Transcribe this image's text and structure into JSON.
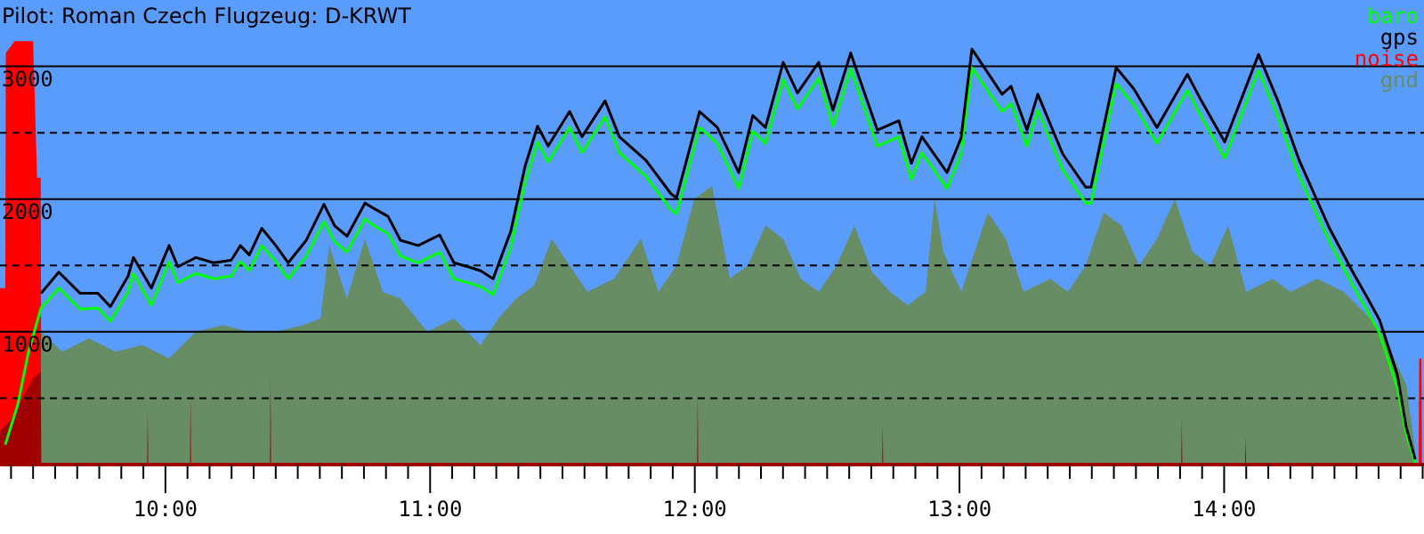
{
  "chart_data": {
    "type": "line",
    "title": "Pilot: Roman Czech Flugzeug: D-KRWT",
    "xlim": [
      9.375,
      14.755
    ],
    "ylim": [
      0,
      3500
    ],
    "yticks": [
      {
        "value": 500,
        "label": null
      },
      {
        "value": 1000,
        "label": "1000"
      },
      {
        "value": 1500,
        "label": null
      },
      {
        "value": 2000,
        "label": "2000"
      },
      {
        "value": 2500,
        "label": null
      },
      {
        "value": 3000,
        "label": "3000"
      }
    ],
    "xticks": [
      {
        "value": 9.4167,
        "label": null
      },
      {
        "value": 9.5,
        "label": null
      },
      {
        "value": 9.5833,
        "label": null
      },
      {
        "value": 9.6667,
        "label": null
      },
      {
        "value": 9.75,
        "label": null
      },
      {
        "value": 9.8333,
        "label": null
      },
      {
        "value": 9.9167,
        "label": null
      },
      {
        "value": 10,
        "label": "10:00"
      },
      {
        "value": 10.0833,
        "label": null
      },
      {
        "value": 10.1667,
        "label": null
      },
      {
        "value": 10.25,
        "label": null
      },
      {
        "value": 10.3333,
        "label": null
      },
      {
        "value": 10.4167,
        "label": null
      },
      {
        "value": 10.5,
        "label": null
      },
      {
        "value": 10.5833,
        "label": null
      },
      {
        "value": 10.6667,
        "label": null
      },
      {
        "value": 10.75,
        "label": null
      },
      {
        "value": 10.8333,
        "label": null
      },
      {
        "value": 10.9167,
        "label": null
      },
      {
        "value": 11,
        "label": "11:00"
      },
      {
        "value": 11.0833,
        "label": null
      },
      {
        "value": 11.1667,
        "label": null
      },
      {
        "value": 11.25,
        "label": null
      },
      {
        "value": 11.3333,
        "label": null
      },
      {
        "value": 11.4167,
        "label": null
      },
      {
        "value": 11.5,
        "label": null
      },
      {
        "value": 11.5833,
        "label": null
      },
      {
        "value": 11.6667,
        "label": null
      },
      {
        "value": 11.75,
        "label": null
      },
      {
        "value": 11.8333,
        "label": null
      },
      {
        "value": 11.9167,
        "label": null
      },
      {
        "value": 12,
        "label": "12:00"
      },
      {
        "value": 12.0833,
        "label": null
      },
      {
        "value": 12.1667,
        "label": null
      },
      {
        "value": 12.25,
        "label": null
      },
      {
        "value": 12.3333,
        "label": null
      },
      {
        "value": 12.4167,
        "label": null
      },
      {
        "value": 12.5,
        "label": null
      },
      {
        "value": 12.5833,
        "label": null
      },
      {
        "value": 12.6667,
        "label": null
      },
      {
        "value": 12.75,
        "label": null
      },
      {
        "value": 12.8333,
        "label": null
      },
      {
        "value": 12.9167,
        "label": null
      },
      {
        "value": 13,
        "label": "13:00"
      },
      {
        "value": 13.0833,
        "label": null
      },
      {
        "value": 13.1667,
        "label": null
      },
      {
        "value": 13.25,
        "label": null
      },
      {
        "value": 13.3333,
        "label": null
      },
      {
        "value": 13.4167,
        "label": null
      },
      {
        "value": 13.5,
        "label": null
      },
      {
        "value": 13.5833,
        "label": null
      },
      {
        "value": 13.6667,
        "label": null
      },
      {
        "value": 13.75,
        "label": null
      },
      {
        "value": 13.8333,
        "label": null
      },
      {
        "value": 13.9167,
        "label": null
      },
      {
        "value": 14,
        "label": "14:00"
      },
      {
        "value": 14.0833,
        "label": null
      },
      {
        "value": 14.1667,
        "label": null
      },
      {
        "value": 14.25,
        "label": null
      },
      {
        "value": 14.3333,
        "label": null
      },
      {
        "value": 14.4167,
        "label": null
      },
      {
        "value": 14.5,
        "label": null
      },
      {
        "value": 14.5833,
        "label": null
      },
      {
        "value": 14.6667,
        "label": null
      },
      {
        "value": 14.75,
        "label": null
      }
    ],
    "grid": true,
    "legend": "top right",
    "series": [
      {
        "name": "baro",
        "color": "#00ff00",
        "x": [
          9.395,
          9.442,
          9.483,
          9.53,
          9.597,
          9.678,
          9.745,
          9.792,
          9.859,
          9.879,
          9.947,
          10.014,
          10.047,
          10.115,
          10.182,
          10.249,
          10.283,
          10.317,
          10.364,
          10.417,
          10.464,
          10.532,
          10.599,
          10.639,
          10.686,
          10.754,
          10.787,
          10.841,
          10.888,
          10.955,
          11.036,
          11.09,
          11.144,
          11.191,
          11.238,
          11.305,
          11.359,
          11.406,
          11.446,
          11.527,
          11.574,
          11.661,
          11.715,
          11.816,
          11.91,
          11.931,
          12.018,
          12.085,
          12.166,
          12.219,
          12.267,
          12.334,
          12.388,
          12.468,
          12.522,
          12.589,
          12.69,
          12.771,
          12.818,
          12.858,
          12.953,
          13.006,
          13.047,
          13.161,
          13.195,
          13.255,
          13.296,
          13.39,
          13.477,
          13.497,
          13.592,
          13.659,
          13.746,
          13.861,
          13.914,
          14.002,
          14.13,
          14.203,
          14.284,
          14.398,
          14.486,
          14.54,
          14.587,
          14.654,
          14.688,
          14.722
        ],
        "values": [
          150,
          450,
          850,
          1180,
          1330,
          1170,
          1180,
          1080,
          1300,
          1440,
          1200,
          1530,
          1370,
          1440,
          1400,
          1420,
          1530,
          1460,
          1650,
          1530,
          1400,
          1570,
          1830,
          1680,
          1600,
          1850,
          1800,
          1740,
          1570,
          1520,
          1600,
          1400,
          1370,
          1340,
          1280,
          1640,
          2130,
          2430,
          2280,
          2540,
          2350,
          2620,
          2350,
          2170,
          1920,
          1890,
          2540,
          2420,
          2080,
          2510,
          2420,
          2900,
          2680,
          2910,
          2550,
          2980,
          2400,
          2470,
          2150,
          2350,
          2080,
          2340,
          2990,
          2660,
          2720,
          2400,
          2670,
          2220,
          1970,
          1970,
          2870,
          2710,
          2420,
          2820,
          2620,
          2310,
          2970,
          2620,
          2170,
          1680,
          1350,
          1160,
          990,
          580,
          230,
          10
        ]
      },
      {
        "name": "gps",
        "color": "#000000",
        "x": [
          9.53,
          9.597,
          9.678,
          9.745,
          9.792,
          9.859,
          9.879,
          9.947,
          10.014,
          10.047,
          10.115,
          10.182,
          10.249,
          10.283,
          10.317,
          10.364,
          10.417,
          10.464,
          10.532,
          10.599,
          10.639,
          10.686,
          10.754,
          10.787,
          10.841,
          10.888,
          10.955,
          11.036,
          11.09,
          11.144,
          11.191,
          11.238,
          11.305,
          11.359,
          11.406,
          11.446,
          11.527,
          11.574,
          11.661,
          11.715,
          11.816,
          11.91,
          11.931,
          12.018,
          12.085,
          12.166,
          12.219,
          12.267,
          12.334,
          12.388,
          12.468,
          12.522,
          12.589,
          12.69,
          12.771,
          12.818,
          12.858,
          12.953,
          13.006,
          13.047,
          13.161,
          13.195,
          13.255,
          13.296,
          13.39,
          13.477,
          13.497,
          13.592,
          13.659,
          13.746,
          13.861,
          13.914,
          14.002,
          14.13,
          14.203,
          14.284,
          14.398,
          14.486,
          14.54,
          14.587,
          14.654,
          14.688,
          14.722
        ],
        "values": [
          1290,
          1450,
          1290,
          1290,
          1190,
          1420,
          1560,
          1330,
          1650,
          1490,
          1560,
          1520,
          1540,
          1650,
          1580,
          1780,
          1650,
          1520,
          1690,
          1960,
          1800,
          1720,
          1970,
          1930,
          1870,
          1690,
          1650,
          1730,
          1520,
          1490,
          1460,
          1400,
          1760,
          2250,
          2550,
          2400,
          2660,
          2470,
          2740,
          2470,
          2290,
          2040,
          2010,
          2660,
          2540,
          2200,
          2630,
          2540,
          3030,
          2800,
          3030,
          2670,
          3100,
          2520,
          2590,
          2270,
          2470,
          2200,
          2460,
          3130,
          2790,
          2850,
          2520,
          2790,
          2340,
          2090,
          2090,
          2990,
          2830,
          2540,
          2940,
          2740,
          2430,
          3090,
          2740,
          2290,
          1780,
          1450,
          1260,
          1090,
          680,
          280,
          40
        ]
      },
      {
        "name": "noise",
        "color": "#ff0000",
        "type": "area",
        "x": [
          9.375,
          9.395,
          9.397,
          9.43,
          9.5,
          9.515,
          9.529,
          9.531,
          14.735,
          14.737,
          14.745,
          14.747,
          14.755
        ],
        "values": [
          1330,
          1330,
          3100,
          3190,
          3190,
          2160,
          2160,
          0,
          0,
          800,
          800,
          0,
          0
        ]
      },
      {
        "name": "gnd",
        "color": "#688c64",
        "type": "area",
        "x": [
          9.53,
          9.61,
          9.711,
          9.812,
          9.913,
          10.014,
          10.115,
          10.216,
          10.317,
          10.417,
          10.518,
          10.586,
          10.619,
          10.686,
          10.754,
          10.821,
          10.888,
          10.989,
          11.09,
          11.191,
          11.258,
          11.325,
          11.393,
          11.46,
          11.527,
          11.594,
          11.695,
          11.796,
          11.863,
          11.931,
          11.998,
          12.065,
          12.132,
          12.2,
          12.267,
          12.334,
          12.401,
          12.469,
          12.536,
          12.603,
          12.67,
          12.738,
          12.805,
          12.872,
          12.906,
          12.939,
          13.007,
          13.107,
          13.175,
          13.242,
          13.343,
          13.41,
          13.477,
          13.545,
          13.612,
          13.679,
          13.746,
          13.814,
          13.881,
          13.948,
          14.015,
          14.083,
          14.183,
          14.251,
          14.352,
          14.452,
          14.553,
          14.62,
          14.688,
          14.722
        ],
        "values": [
          1000,
          850,
          950,
          850,
          900,
          800,
          1000,
          1050,
          1000,
          1000,
          1050,
          1100,
          1650,
          1250,
          1700,
          1300,
          1250,
          1000,
          1100,
          900,
          1100,
          1250,
          1350,
          1700,
          1500,
          1300,
          1400,
          1700,
          1300,
          1500,
          2000,
          2100,
          1400,
          1500,
          1800,
          1700,
          1400,
          1300,
          1500,
          1800,
          1450,
          1300,
          1200,
          1300,
          2000,
          1600,
          1300,
          1900,
          1700,
          1300,
          1400,
          1300,
          1500,
          1900,
          1800,
          1500,
          1700,
          2000,
          1600,
          1500,
          1800,
          1300,
          1400,
          1300,
          1400,
          1300,
          1100,
          900,
          600,
          100
        ]
      },
      {
        "color": "#a00000",
        "type": "area",
        "x": [
          9.375,
          9.42,
          9.46,
          9.5,
          9.529,
          9.531,
          9.931,
          9.933,
          9.935,
          10.093,
          10.095,
          10.097,
          10.395,
          10.397,
          10.399,
          12.009,
          12.011,
          12.013,
          12.708,
          12.71,
          12.712,
          13.838,
          13.84,
          13.842,
          14.079,
          14.081,
          14.083,
          14.755
        ],
        "values": [
          250,
          350,
          500,
          650,
          700,
          0,
          0,
          400,
          0,
          0,
          520,
          0,
          0,
          660,
          0,
          0,
          550,
          0,
          0,
          310,
          0,
          0,
          350,
          0,
          0,
          210,
          0,
          0
        ]
      }
    ]
  }
}
